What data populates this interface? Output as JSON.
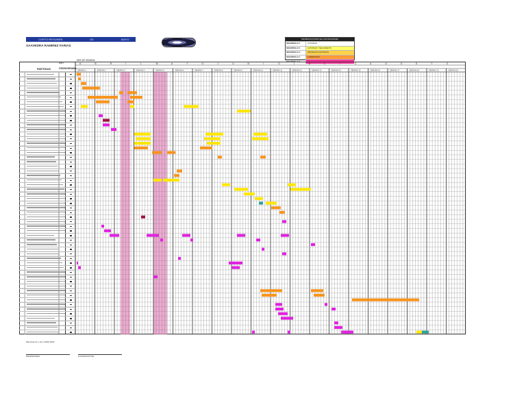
{
  "header": {
    "bar_labels": [
      "CORTO RESUMEN",
      "DE",
      "MAYO"
    ],
    "subtitle": "SAAVEDRA RAMIREZ FARIAS"
  },
  "legend": {
    "title": "TERMINACIONES DEL CRONOGRAMA",
    "rows": [
      {
        "name": "DESARROLLO 1",
        "desc": "ACTIVIDAD",
        "color": "#ffffff"
      },
      {
        "name": "DESARROLLO 2",
        "desc": "ACTIVIDAD Y SEGUIMIENTO",
        "color": "#ffff66"
      },
      {
        "name": "DESARROLLO 3",
        "desc": "PROCESOS CONTINUOS",
        "color": "#ffd24a"
      },
      {
        "name": "DESARROLLO 4",
        "desc": "SUPERVISION",
        "color": "#ff9933"
      },
      {
        "name": "DESARROLLO 5",
        "desc": "",
        "color": "#ff3399"
      }
    ]
  },
  "table": {
    "year_label": "AÑO",
    "semana_label": "MES DE SEMANA",
    "partidas_label": "PARTIDAS",
    "cronograma_label": "CRONOGRAMA",
    "month_letters": [
      "A",
      "B",
      "R",
      "I",
      "L",
      "M",
      "A",
      "Y",
      "O",
      "J",
      "U",
      "N",
      "I",
      "O",
      "J",
      "U",
      "L",
      "I",
      "O",
      "A",
      "G",
      "O",
      "S",
      "T",
      "O"
    ],
    "week_label": "SEMANA",
    "rows_count": 57
  },
  "bars": {
    "orange": "#f7941d",
    "yellow": "#ffe600",
    "magenta": "#e020e0",
    "darkred": "#a01040",
    "teal": "#2aa198",
    "pink_column": "#e58fc0"
  },
  "footer": {
    "note": "Manzana 24, Lote 4 ADM 2003",
    "sign1_line": "PROPIETARIO",
    "sign2_line": "CONSTRUCTOR"
  }
}
